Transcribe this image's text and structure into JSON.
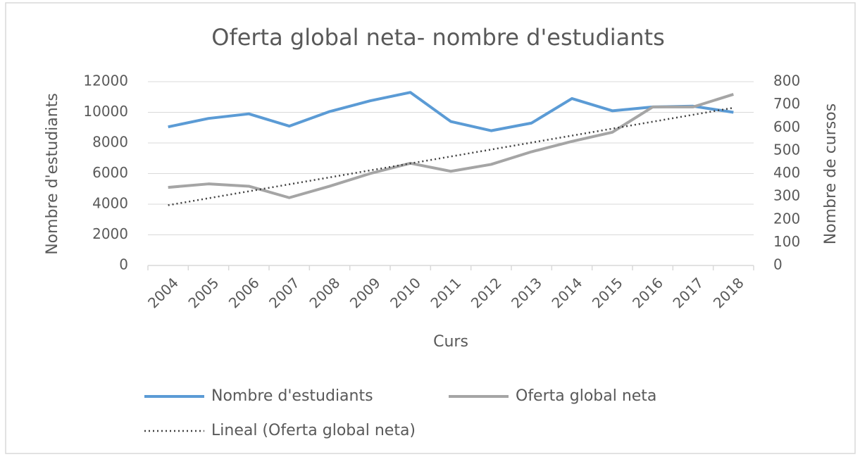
{
  "chart_data": {
    "type": "line",
    "title": "Oferta global neta- nombre d'estudiants",
    "xlabel": "Curs",
    "ylabel": "Nombre d'estudiants",
    "y2label": "Nombre de cursos",
    "categories": [
      "2004",
      "2005",
      "2006",
      "2007",
      "2008",
      "2009",
      "2010",
      "2011",
      "2012",
      "2013",
      "2014",
      "2015",
      "2016",
      "2017",
      "2018"
    ],
    "series": [
      {
        "name": "Nombre d'estudiants",
        "color": "#5b9bd5",
        "values": [
          9050,
          9600,
          9900,
          9100,
          10050,
          10750,
          11300,
          9400,
          8800,
          9300,
          10900,
          10100,
          10350,
          10400,
          10000
        ]
      },
      {
        "name": "Oferta global neta",
        "color": "#a5a5a5",
        "axis": "y2",
        "values": [
          340,
          355,
          345,
          295,
          345,
          400,
          445,
          410,
          440,
          495,
          540,
          580,
          690,
          690,
          745
        ]
      },
      {
        "name": "Lineal (Oferta global neta)",
        "color": "#404040",
        "axis": "y2",
        "trendline": "linear"
      }
    ],
    "ylim": [
      0,
      12000
    ],
    "yticks": [
      0,
      2000,
      4000,
      6000,
      8000,
      10000,
      12000
    ],
    "y2lim": [
      0,
      800
    ],
    "y2ticks": [
      0,
      100,
      200,
      300,
      400,
      500,
      600,
      700,
      800
    ],
    "grid": true,
    "legend": "bottom"
  }
}
